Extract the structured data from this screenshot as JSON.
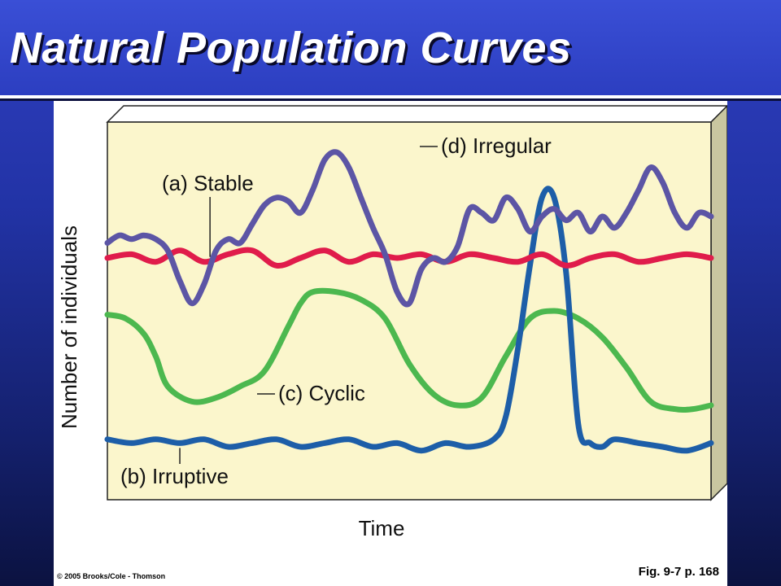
{
  "slide": {
    "title": "Natural Population Curves",
    "figure_ref": "Fig. 9-7 p. 168",
    "copyright": "© 2005 Brooks/Cole - Thomson"
  },
  "chart_data": {
    "type": "line",
    "xlabel": "Time",
    "ylabel": "Number of individuals",
    "xlim": [
      0,
      100
    ],
    "ylim": [
      0,
      100
    ],
    "grid": false,
    "background": "#fbf6cc",
    "series": [
      {
        "name": "(a) Stable",
        "color": "#e01c4b",
        "x": [
          0,
          4,
          8,
          12,
          16,
          20,
          24,
          28,
          32,
          36,
          40,
          44,
          48,
          52,
          56,
          60,
          64,
          68,
          72,
          76,
          80,
          84,
          88,
          92,
          96,
          100
        ],
        "values": [
          64,
          65,
          63,
          66,
          63,
          65,
          66,
          62,
          64,
          66,
          63,
          65,
          64,
          65,
          63,
          65,
          64,
          63,
          65,
          62,
          64,
          65,
          63,
          64,
          65,
          64
        ]
      },
      {
        "name": "(b) Irruptive",
        "color": "#1d5ea8",
        "x": [
          0,
          4,
          8,
          12,
          16,
          20,
          24,
          28,
          32,
          36,
          40,
          44,
          48,
          52,
          56,
          60,
          64,
          66,
          68,
          70,
          72,
          74,
          76,
          78,
          80,
          82,
          84,
          88,
          92,
          96,
          100
        ],
        "values": [
          16,
          15,
          16,
          15,
          16,
          14,
          15,
          16,
          14,
          15,
          16,
          14,
          15,
          13,
          15,
          14,
          16,
          22,
          40,
          62,
          80,
          80,
          60,
          20,
          15,
          14,
          16,
          15,
          14,
          13,
          15
        ]
      },
      {
        "name": "(c) Cyclic",
        "color": "#4cb84f",
        "x": [
          0,
          3,
          6,
          8,
          10,
          14,
          18,
          22,
          26,
          30,
          32,
          34,
          38,
          42,
          46,
          50,
          54,
          58,
          62,
          66,
          70,
          74,
          78,
          82,
          86,
          90,
          94,
          97,
          100
        ],
        "values": [
          49,
          48,
          44,
          38,
          30,
          26,
          27,
          30,
          34,
          46,
          52,
          55,
          55,
          53,
          48,
          36,
          28,
          25,
          27,
          38,
          48,
          50,
          48,
          43,
          35,
          26,
          24,
          24,
          25
        ]
      },
      {
        "name": "(d) Irregular",
        "color": "#5c55a5",
        "x": [
          0,
          2,
          4,
          6,
          8,
          10,
          12,
          14,
          16,
          18,
          20,
          22,
          24,
          26,
          28,
          30,
          32,
          34,
          36,
          38,
          40,
          42,
          44,
          46,
          48,
          50,
          52,
          54,
          56,
          58,
          60,
          62,
          64,
          66,
          68,
          70,
          72,
          74,
          76,
          78,
          80,
          82,
          84,
          86,
          88,
          90,
          92,
          94,
          96,
          98,
          100
        ],
        "values": [
          68,
          70,
          69,
          70,
          69,
          66,
          58,
          52,
          57,
          66,
          69,
          68,
          73,
          78,
          80,
          79,
          76,
          82,
          90,
          92,
          88,
          80,
          72,
          65,
          55,
          52,
          61,
          64,
          63,
          67,
          77,
          76,
          74,
          80,
          77,
          71,
          75,
          77,
          74,
          76,
          71,
          75,
          72,
          76,
          82,
          88,
          84,
          76,
          72,
          76,
          75
        ]
      }
    ]
  }
}
